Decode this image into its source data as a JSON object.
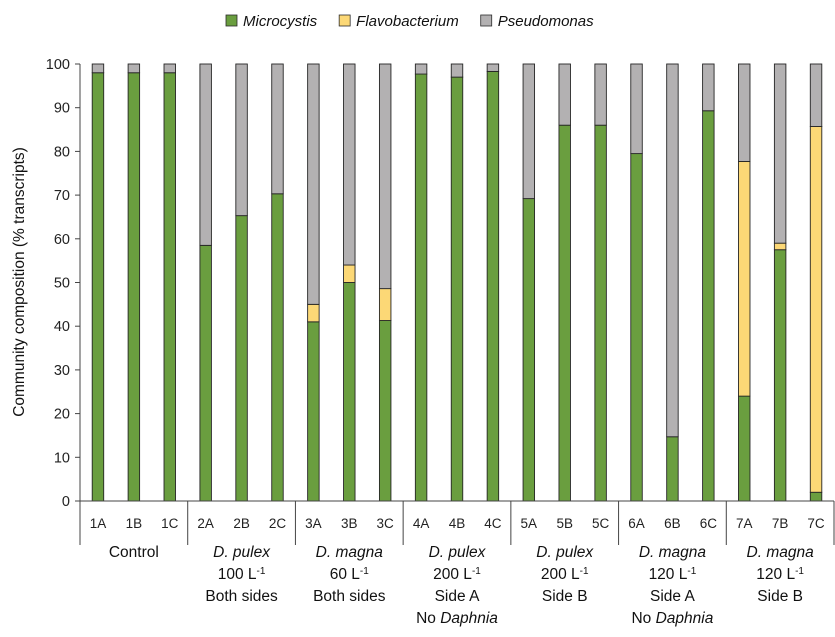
{
  "chart_data": {
    "type": "bar",
    "stacked": true,
    "ylabel": "Community composition (% transcripts)",
    "ylim": [
      0,
      100
    ],
    "yticks": [
      0,
      10,
      20,
      30,
      40,
      50,
      60,
      70,
      80,
      90,
      100
    ],
    "grid": false,
    "legend_position": "top",
    "categories": [
      "1A",
      "1B",
      "1C",
      "2A",
      "2B",
      "2C",
      "3A",
      "3B",
      "3C",
      "4A",
      "4B",
      "4C",
      "5A",
      "5B",
      "5C",
      "6A",
      "6B",
      "6C",
      "7A",
      "7B",
      "7C"
    ],
    "series": [
      {
        "name": "Microcystis",
        "color": "#6a9e3f",
        "values": [
          98,
          98,
          98,
          58.5,
          65.3,
          70.3,
          41,
          50,
          41.3,
          97.7,
          97,
          98.3,
          69.2,
          86,
          86,
          79.5,
          14.7,
          89.3,
          24,
          57.5,
          2
        ]
      },
      {
        "name": "Flavobacterium",
        "color": "#fcd876",
        "values": [
          0,
          0,
          0,
          0,
          0,
          0,
          4,
          4,
          7.3,
          0,
          0,
          0,
          0,
          0,
          0,
          0,
          0,
          0,
          53.7,
          1.5,
          83.7
        ]
      },
      {
        "name": "Pseudomonas",
        "color": "#b3b1b2",
        "values": [
          2,
          2,
          2,
          41.5,
          34.7,
          29.7,
          55,
          46,
          51.4,
          2.3,
          3,
          1.7,
          30.8,
          14,
          14,
          20.5,
          85.3,
          10.7,
          22.3,
          41,
          14.3
        ]
      }
    ],
    "groups": [
      {
        "lines": [
          {
            "parts": [
              {
                "t": "Control",
                "i": false
              }
            ]
          }
        ]
      },
      {
        "lines": [
          {
            "parts": [
              {
                "t": "D. pulex",
                "i": true
              }
            ]
          },
          {
            "parts": [
              {
                "t": "100 L",
                "i": false
              },
              {
                "t": "-1",
                "i": false,
                "sup": true
              }
            ]
          },
          {
            "parts": [
              {
                "t": "Both sides",
                "i": false
              }
            ]
          }
        ]
      },
      {
        "lines": [
          {
            "parts": [
              {
                "t": "D. magna",
                "i": true
              }
            ]
          },
          {
            "parts": [
              {
                "t": "60 L",
                "i": false
              },
              {
                "t": "-1",
                "i": false,
                "sup": true
              }
            ]
          },
          {
            "parts": [
              {
                "t": "Both sides",
                "i": false
              }
            ]
          }
        ]
      },
      {
        "lines": [
          {
            "parts": [
              {
                "t": "D. pulex",
                "i": true
              }
            ]
          },
          {
            "parts": [
              {
                "t": "200 L",
                "i": false
              },
              {
                "t": "-1",
                "i": false,
                "sup": true
              }
            ]
          },
          {
            "parts": [
              {
                "t": "Side A",
                "i": false
              }
            ]
          },
          {
            "parts": [
              {
                "t": "No ",
                "i": false
              },
              {
                "t": "Daphnia",
                "i": true
              }
            ]
          }
        ]
      },
      {
        "lines": [
          {
            "parts": [
              {
                "t": "D. pulex",
                "i": true
              }
            ]
          },
          {
            "parts": [
              {
                "t": "200 L",
                "i": false
              },
              {
                "t": "-1",
                "i": false,
                "sup": true
              }
            ]
          },
          {
            "parts": [
              {
                "t": "Side B",
                "i": false
              }
            ]
          }
        ]
      },
      {
        "lines": [
          {
            "parts": [
              {
                "t": "D. magna",
                "i": true
              }
            ]
          },
          {
            "parts": [
              {
                "t": "120 L",
                "i": false
              },
              {
                "t": "-1",
                "i": false,
                "sup": true
              }
            ]
          },
          {
            "parts": [
              {
                "t": "Side A",
                "i": false
              }
            ]
          },
          {
            "parts": [
              {
                "t": "No ",
                "i": false
              },
              {
                "t": "Daphnia",
                "i": true
              }
            ]
          }
        ]
      },
      {
        "lines": [
          {
            "parts": [
              {
                "t": "D. magna",
                "i": true
              }
            ]
          },
          {
            "parts": [
              {
                "t": "120 L",
                "i": false
              },
              {
                "t": "-1",
                "i": false,
                "sup": true
              }
            ]
          },
          {
            "parts": [
              {
                "t": "Side B",
                "i": false
              }
            ]
          }
        ]
      }
    ]
  }
}
